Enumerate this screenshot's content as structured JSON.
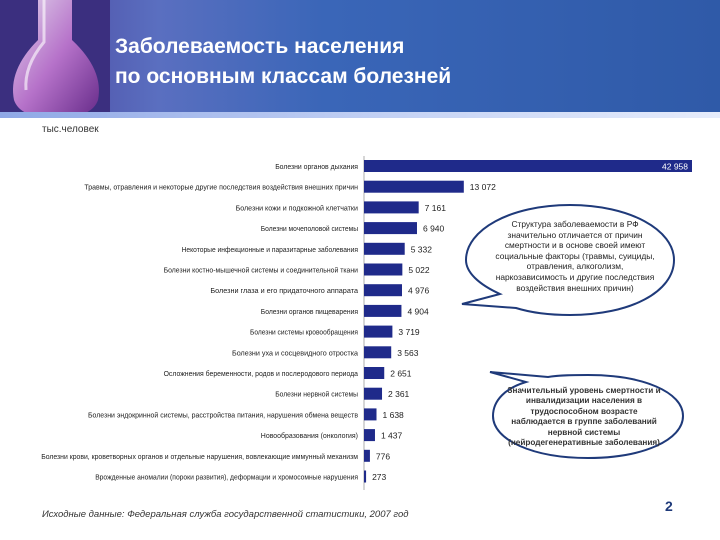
{
  "slide": {
    "title_line1": "Заболеваемость населения",
    "title_line2": "по основным классам болезней",
    "units": "тыс.человек",
    "source": "Исходные данные: Федеральная служба государственной статистики, 2007 год",
    "page_number": "2"
  },
  "callouts": {
    "structure": "Структура заболеваемости в РФ значительно отличается от причин смертности и в основе своей имеют социальные факторы (травмы, суициды, отравления, алкоголизм, наркозависимость и другие последствия воздействия внешних причин)",
    "disability": "Значительный уровень смертности и инвалидизации населения в трудоспособном возрасте наблюдается в группе заболеваний нервной системы (нейродегенеративные заболевания)"
  },
  "colors": {
    "bar": "#1f2a8a",
    "header": "#3a66b8",
    "callout_border": "#1f3a7a"
  },
  "chart_data": {
    "type": "bar",
    "orientation": "horizontal",
    "categories": [
      "Болезни органов дыхания",
      "Травмы, отравления и некоторые другие последствия воздействия внешних причин",
      "Болезни кожи и подкожной клетчатки",
      "Болезни мочеполовой системы",
      "Некоторые инфекционные и паразитарные заболевания",
      "Болезни костно-мышечной системы и соединительной ткани",
      "Болезни глаза и его придаточного аппарата",
      "Болезни органов пищеварения",
      "Болезни системы кровообращения",
      "Болезни уха и сосцевидного отростка",
      "Осложнения беременности, родов и послеродового периода",
      "Болезни нервной системы",
      "Болезни эндокринной системы, расстройства питания, нарушения обмена веществ",
      "Новообразования (онкология)",
      "Болезни крови, кроветворных органов и отдельные нарушения, вовлекающие иммунный механизм",
      "Врожденные аномалии (пороки развития), деформации и хромосомные нарушения"
    ],
    "values": [
      42958,
      13072,
      7161,
      6940,
      5332,
      5022,
      4976,
      4904,
      3719,
      3563,
      2651,
      2361,
      1638,
      1437,
      776,
      273
    ],
    "value_labels": [
      "42 958",
      "13 072",
      "7 161",
      "6 940",
      "5 332",
      "5 022",
      "4 976",
      "4 904",
      "3 719",
      "3 563",
      "2 651",
      "2 361",
      "1 638",
      "1 437",
      "776",
      "273"
    ],
    "xlim": [
      0,
      42958
    ],
    "grid": false,
    "legend": "none"
  }
}
